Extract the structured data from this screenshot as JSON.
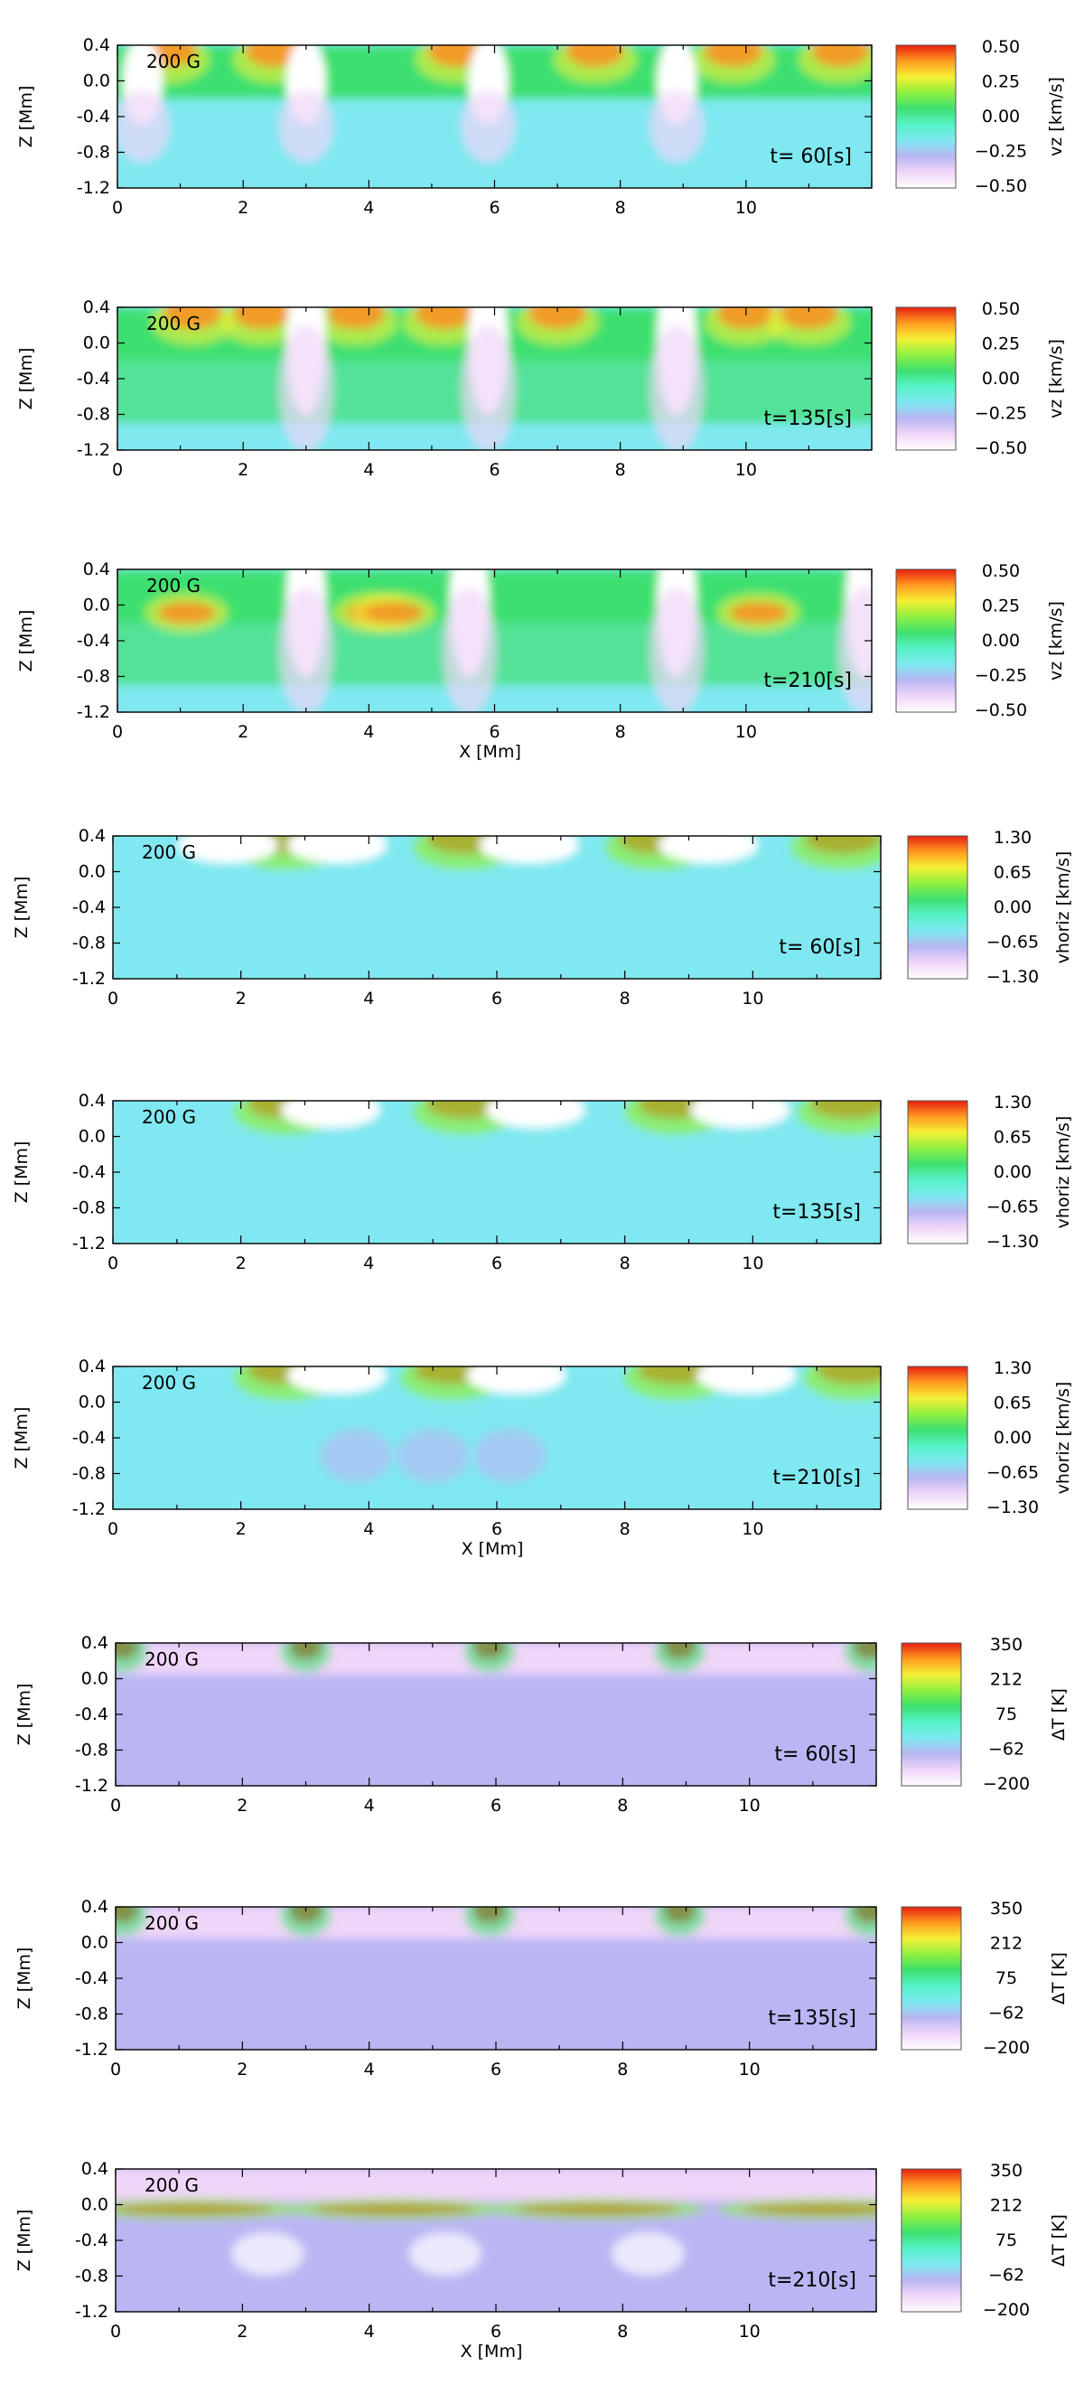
{
  "figure": {
    "colors": {
      "cmap": [
        "#ffffff",
        "#f0d6f8",
        "#b9b6f3",
        "#7fe8f0",
        "#55f2c8",
        "#3ee070",
        "#8ff040",
        "#f5f035",
        "#ff9a20",
        "#e82010"
      ],
      "axis": "#000000"
    },
    "common": {
      "field_label": "200 G",
      "xlabel": "X [Mm]",
      "ylabel": "Z [Mm]",
      "xticks": [
        "0",
        "2",
        "4",
        "6",
        "8",
        "10"
      ],
      "yticks": [
        "0.4",
        "0.0",
        "-0.4",
        "-0.8",
        "-1.2"
      ],
      "xlim": [
        0,
        12
      ],
      "ylim": [
        -1.2,
        0.4
      ]
    },
    "groups": [
      {
        "variable": "vz",
        "cbar_label": "vz [km/s]",
        "cbar_ticks": [
          "0.50",
          "0.25",
          "0.00",
          "−0.25",
          "−0.50"
        ],
        "panels": [
          {
            "time_label": "t= 60[s]",
            "show_xlabel": false
          },
          {
            "time_label": "t=135[s]",
            "show_xlabel": false
          },
          {
            "time_label": "t=210[s]",
            "show_xlabel": true
          }
        ]
      },
      {
        "variable": "vhoriz",
        "cbar_label": "vhoriz [km/s]",
        "cbar_ticks": [
          "1.30",
          "0.65",
          "0.00",
          "−0.65",
          "−1.30"
        ],
        "panels": [
          {
            "time_label": "t= 60[s]",
            "show_xlabel": false
          },
          {
            "time_label": "t=135[s]",
            "show_xlabel": false
          },
          {
            "time_label": "t=210[s]",
            "show_xlabel": true
          }
        ]
      },
      {
        "variable": "dT",
        "cbar_label": "ΔT [K]",
        "cbar_ticks": [
          "350",
          "212",
          "75",
          "−62",
          "−200"
        ],
        "panels": [
          {
            "time_label": "t= 60[s]",
            "show_xlabel": false
          },
          {
            "time_label": "t=135[s]",
            "show_xlabel": false
          },
          {
            "time_label": "t=210[s]",
            "show_xlabel": true
          }
        ]
      }
    ]
  },
  "chart_data": [
    {
      "type": "heatmap",
      "variable": "vz",
      "time": "t= 60[s]",
      "field": "200 G",
      "xlabel": "",
      "ylabel": "Z [Mm]",
      "xlim": [
        0,
        12
      ],
      "ylim": [
        -1.2,
        0.4
      ],
      "colorbar": {
        "label": "vz [km/s]",
        "range": [
          -0.5,
          0.5
        ],
        "ticks": [
          0.5,
          0.25,
          0.0,
          -0.25,
          -0.5
        ]
      },
      "features": {
        "upflow_x": [
          0.8,
          2.5,
          5.4,
          7.6,
          9.8,
          11.5
        ],
        "downflow_x": [
          0.4,
          3.0,
          5.9,
          8.9
        ]
      }
    },
    {
      "type": "heatmap",
      "variable": "vz",
      "time": "t=135[s]",
      "field": "200 G",
      "xlabel": "",
      "ylabel": "Z [Mm]",
      "xlim": [
        0,
        12
      ],
      "ylim": [
        -1.2,
        0.4
      ],
      "colorbar": {
        "label": "vz [km/s]",
        "range": [
          -0.5,
          0.5
        ],
        "ticks": [
          0.5,
          0.25,
          0.0,
          -0.25,
          -0.5
        ]
      },
      "features": {
        "upflow_x": [
          1.2,
          2.3,
          3.8,
          5.2,
          7.0,
          10.0,
          11.0
        ],
        "downflow_x": [
          3.0,
          5.9,
          8.9
        ]
      }
    },
    {
      "type": "heatmap",
      "variable": "vz",
      "time": "t=210[s]",
      "field": "200 G",
      "xlabel": "X [Mm]",
      "ylabel": "Z [Mm]",
      "xlim": [
        0,
        12
      ],
      "ylim": [
        -1.2,
        0.4
      ],
      "colorbar": {
        "label": "vz [km/s]",
        "range": [
          -0.5,
          0.5
        ],
        "ticks": [
          0.5,
          0.25,
          0.0,
          -0.25,
          -0.5
        ]
      },
      "features": {
        "upflow_x": [
          1.1,
          4.1,
          4.4,
          10.2
        ],
        "downflow_x": [
          3.0,
          5.6,
          8.9,
          11.9
        ]
      }
    },
    {
      "type": "heatmap",
      "variable": "vhoriz",
      "time": "t= 60[s]",
      "field": "200 G",
      "xlabel": "",
      "ylabel": "Z [Mm]",
      "xlim": [
        0,
        12
      ],
      "ylim": [
        -1.2,
        0.4
      ],
      "colorbar": {
        "label": "vhoriz [km/s]",
        "range": [
          -1.3,
          1.3
        ],
        "ticks": [
          1.3,
          0.65,
          0.0,
          -0.65,
          -1.3
        ]
      },
      "features": {
        "positive_x": [
          2.7,
          5.5,
          8.5,
          11.4
        ],
        "negative_x": [
          1.8,
          3.5,
          6.5,
          9.3
        ]
      }
    },
    {
      "type": "heatmap",
      "variable": "vhoriz",
      "time": "t=135[s]",
      "field": "200 G",
      "xlabel": "",
      "ylabel": "Z [Mm]",
      "xlim": [
        0,
        12
      ],
      "ylim": [
        -1.2,
        0.4
      ],
      "colorbar": {
        "label": "vhoriz [km/s]",
        "range": [
          -1.3,
          1.3
        ],
        "ticks": [
          1.3,
          0.65,
          0.0,
          -0.65,
          -1.3
        ]
      },
      "features": {
        "positive_x": [
          2.7,
          5.5,
          8.8,
          11.5
        ],
        "negative_x": [
          3.4,
          6.6,
          9.8
        ]
      }
    },
    {
      "type": "heatmap",
      "variable": "vhoriz",
      "time": "t=210[s]",
      "field": "200 G",
      "xlabel": "X [Mm]",
      "ylabel": "Z [Mm]",
      "xlim": [
        0,
        12
      ],
      "ylim": [
        -1.2,
        0.4
      ],
      "colorbar": {
        "label": "vhoriz [km/s]",
        "range": [
          -1.3,
          1.3
        ],
        "ticks": [
          1.3,
          0.65,
          0.0,
          -0.65,
          -1.3
        ]
      },
      "features": {
        "positive_x": [
          2.7,
          5.3,
          8.8,
          11.6
        ],
        "negative_x": [
          3.5,
          6.3,
          9.9
        ]
      }
    },
    {
      "type": "heatmap",
      "variable": "dT",
      "time": "t= 60[s]",
      "field": "200 G",
      "xlabel": "",
      "ylabel": "Z [Mm]",
      "xlim": [
        0,
        12
      ],
      "ylim": [
        -1.2,
        0.4
      ],
      "colorbar": {
        "label": "ΔT [K]",
        "range": [
          -200,
          350
        ],
        "ticks": [
          350,
          212,
          75,
          -62,
          -200
        ]
      },
      "features": {
        "hot_x": [
          0.1,
          3.0,
          5.9,
          8.9,
          11.9
        ]
      }
    },
    {
      "type": "heatmap",
      "variable": "dT",
      "time": "t=135[s]",
      "field": "200 G",
      "xlabel": "",
      "ylabel": "Z [Mm]",
      "xlim": [
        0,
        12
      ],
      "ylim": [
        -1.2,
        0.4
      ],
      "colorbar": {
        "label": "ΔT [K]",
        "range": [
          -200,
          350
        ],
        "ticks": [
          350,
          212,
          75,
          -62,
          -200
        ]
      },
      "features": {
        "hot_x": [
          0.1,
          3.0,
          5.9,
          8.9,
          11.9
        ]
      }
    },
    {
      "type": "heatmap",
      "variable": "dT",
      "time": "t=210[s]",
      "field": "200 G",
      "xlabel": "X [Mm]",
      "ylabel": "Z [Mm]",
      "xlim": [
        0,
        12
      ],
      "ylim": [
        -1.2,
        0.4
      ],
      "colorbar": {
        "label": "ΔT [K]",
        "range": [
          -200,
          350
        ],
        "ticks": [
          350,
          212,
          75,
          -62,
          -200
        ]
      },
      "features": {
        "hot_layer_x": [
          1.2,
          4.4,
          7.6,
          11.2
        ]
      }
    }
  ]
}
